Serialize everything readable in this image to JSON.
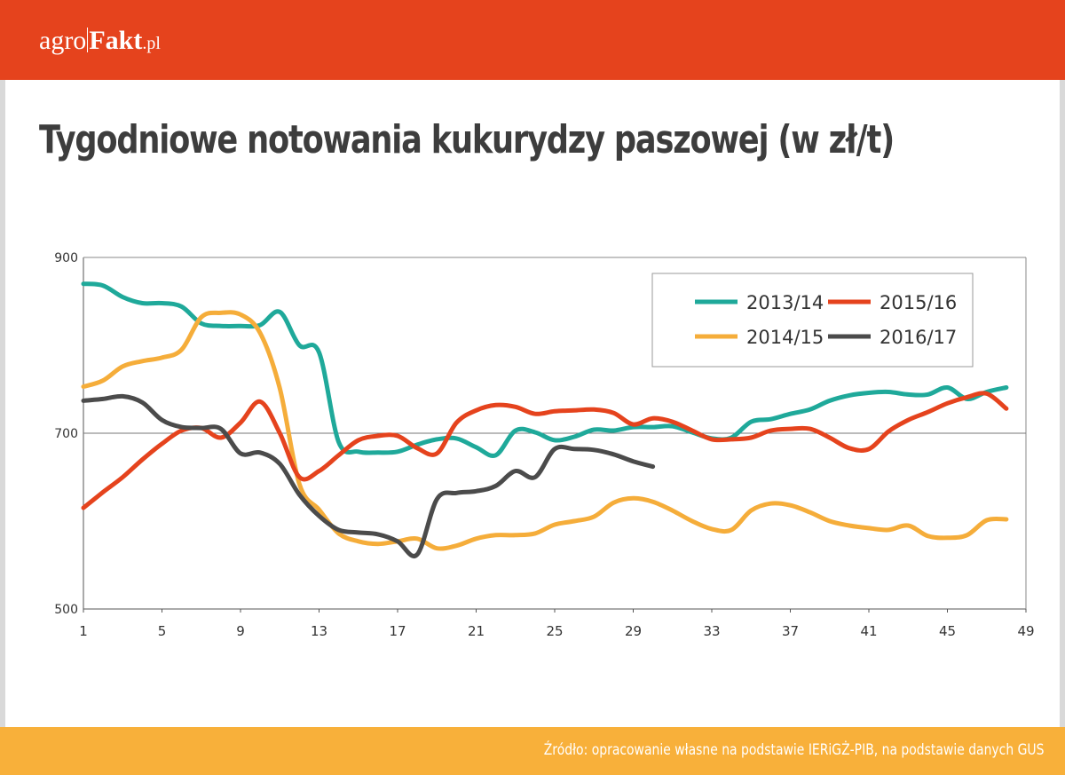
{
  "header": {
    "logo_prefix": "agro",
    "logo_brand": "Fakt",
    "logo_tld": ".pl",
    "bg_color": "#e5431d"
  },
  "title": "Tygodniowe notowania kukurydzy paszowej (w zł/t)",
  "footer": {
    "source": "Źródło: opracowanie własne na podstawie IERiGŻ-PIB, na podstawie danych GUS",
    "bg_color": "#f8b03a"
  },
  "chart_data": {
    "type": "line",
    "title": "Tygodniowe notowania kukurydzy paszowej (w zł/t)",
    "xlabel": "",
    "ylabel": "",
    "xlim": [
      1,
      49
    ],
    "ylim": [
      500,
      900
    ],
    "x_ticks": [
      1,
      5,
      9,
      13,
      17,
      21,
      25,
      29,
      33,
      37,
      41,
      45,
      49
    ],
    "y_ticks": [
      500,
      700,
      900
    ],
    "grid": "horizontal line at 700",
    "legend_position": "top-right",
    "series": [
      {
        "name": "2013/14",
        "color": "#1fa99a",
        "x": [
          1,
          2,
          3,
          4,
          5,
          6,
          7,
          8,
          9,
          10,
          11,
          12,
          13,
          14,
          15,
          16,
          17,
          18,
          19,
          20,
          21,
          22,
          23,
          24,
          25,
          26,
          27,
          28,
          29,
          30,
          31,
          32,
          33,
          34,
          35,
          36,
          37,
          38,
          39,
          40,
          41,
          42,
          43,
          44,
          45,
          46,
          47,
          48
        ],
        "y": [
          870,
          868,
          855,
          848,
          848,
          844,
          825,
          822,
          822,
          823,
          838,
          800,
          792,
          690,
          679,
          678,
          679,
          687,
          693,
          694,
          684,
          675,
          703,
          701,
          692,
          696,
          704,
          703,
          707,
          707,
          708,
          701,
          694,
          695,
          713,
          716,
          722,
          727,
          737,
          743,
          746,
          747,
          744,
          744,
          752,
          739,
          747,
          752
        ]
      },
      {
        "name": "2014/15",
        "color": "#f5ad3a",
        "x": [
          1,
          2,
          3,
          4,
          5,
          6,
          7,
          8,
          9,
          10,
          11,
          12,
          13,
          14,
          15,
          16,
          17,
          18,
          19,
          20,
          21,
          22,
          23,
          24,
          25,
          26,
          27,
          28,
          29,
          30,
          31,
          32,
          33,
          34,
          35,
          36,
          37,
          38,
          39,
          40,
          41,
          42,
          43,
          44,
          45,
          46,
          47,
          48
        ],
        "y": [
          753,
          760,
          776,
          782,
          786,
          795,
          832,
          837,
          835,
          814,
          751,
          642,
          613,
          586,
          577,
          574,
          577,
          580,
          569,
          572,
          580,
          584,
          584,
          586,
          596,
          600,
          605,
          621,
          626,
          622,
          612,
          600,
          591,
          590,
          612,
          620,
          618,
          610,
          600,
          595,
          592,
          590,
          595,
          583,
          581,
          584,
          601,
          602
        ]
      },
      {
        "name": "2015/16",
        "color": "#e5431d",
        "x": [
          1,
          2,
          3,
          4,
          5,
          6,
          7,
          8,
          9,
          10,
          11,
          12,
          13,
          14,
          15,
          16,
          17,
          18,
          19,
          20,
          21,
          22,
          23,
          24,
          25,
          26,
          27,
          28,
          29,
          30,
          31,
          32,
          33,
          34,
          35,
          36,
          37,
          38,
          39,
          40,
          41,
          42,
          43,
          44,
          45,
          46,
          47,
          48
        ],
        "y": [
          615,
          633,
          650,
          670,
          688,
          703,
          706,
          695,
          712,
          736,
          700,
          650,
          657,
          675,
          692,
          697,
          697,
          683,
          677,
          712,
          726,
          732,
          730,
          722,
          725,
          726,
          727,
          723,
          710,
          717,
          713,
          703,
          693,
          693,
          695,
          703,
          705,
          705,
          695,
          683,
          682,
          702,
          715,
          724,
          734,
          741,
          745,
          728
        ]
      },
      {
        "name": "2016/17",
        "color": "#4b4b4b",
        "x": [
          1,
          2,
          3,
          4,
          5,
          6,
          7,
          8,
          9,
          10,
          11,
          12,
          13,
          14,
          15,
          16,
          17,
          18,
          19,
          20,
          21,
          22,
          23,
          24,
          25,
          26,
          27,
          28,
          29,
          30
        ],
        "y": [
          737,
          739,
          742,
          735,
          715,
          707,
          706,
          705,
          677,
          678,
          665,
          630,
          606,
          590,
          587,
          585,
          577,
          562,
          625,
          632,
          634,
          640,
          657,
          650,
          682,
          682,
          681,
          676,
          668,
          662
        ]
      }
    ]
  }
}
